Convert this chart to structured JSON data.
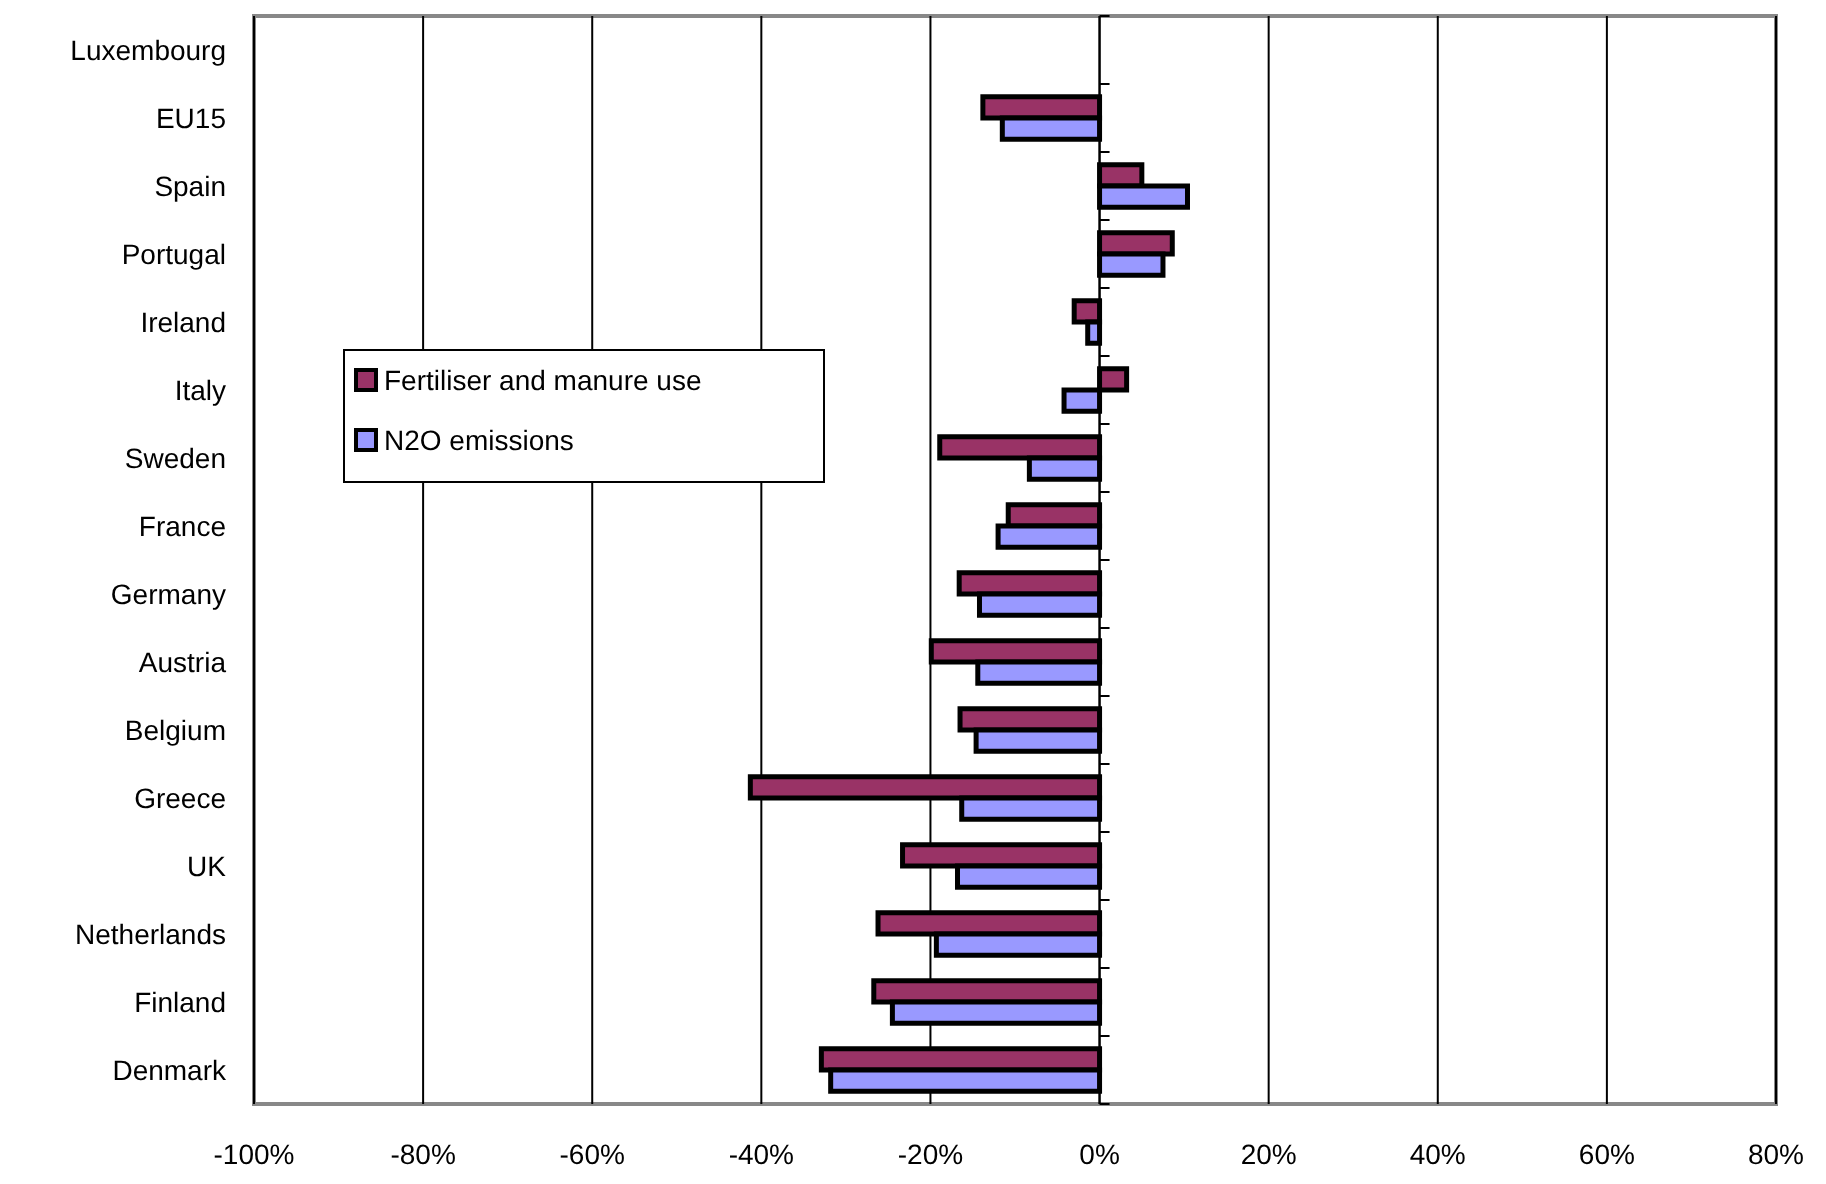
{
  "chart_data": {
    "type": "bar",
    "orientation": "horizontal",
    "categories": [
      "Luxembourg",
      "EU15",
      "Spain",
      "Portugal",
      "Ireland",
      "Italy",
      "Sweden",
      "France",
      "Germany",
      "Austria",
      "Belgium",
      "Greece",
      "UK",
      "Netherlands",
      "Finland",
      "Denmark"
    ],
    "series": [
      {
        "name": "Fertiliser and manure use",
        "color": "#993366",
        "values": [
          null,
          -13.8,
          5.0,
          8.6,
          -3.0,
          3.2,
          -18.9,
          -10.8,
          -16.6,
          -19.9,
          -16.5,
          -41.3,
          -23.3,
          -26.2,
          -26.7,
          -32.9
        ]
      },
      {
        "name": "N2O emissions",
        "color": "#9999ff",
        "values": [
          null,
          -11.5,
          10.4,
          7.5,
          -1.4,
          -4.2,
          -8.3,
          -12.0,
          -14.2,
          -14.4,
          -14.6,
          -16.3,
          -16.8,
          -19.3,
          -24.5,
          -31.8
        ]
      }
    ],
    "xlim": [
      -100,
      80
    ],
    "xticks": [
      {
        "value": -100,
        "label": "-100%"
      },
      {
        "value": -80,
        "label": "-80%"
      },
      {
        "value": -60,
        "label": "-60%"
      },
      {
        "value": -40,
        "label": "-40%"
      },
      {
        "value": -20,
        "label": "-20%"
      },
      {
        "value": 0,
        "label": "0%"
      },
      {
        "value": 20,
        "label": "20%"
      },
      {
        "value": 40,
        "label": "40%"
      },
      {
        "value": 60,
        "label": "60%"
      },
      {
        "value": 80,
        "label": "80%"
      }
    ],
    "grid": "x",
    "legend": "left"
  }
}
